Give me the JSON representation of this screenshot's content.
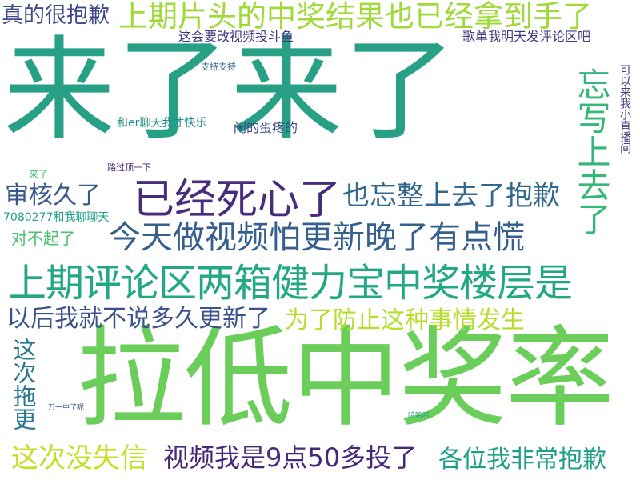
{
  "words": [
    {
      "text": "来了来了",
      "color": "#27a086"
    },
    {
      "text": "拉低中奖率",
      "color": "#6cce5a"
    },
    {
      "text": "上期片头的中奖结果也已经拿到手了",
      "color": "#a0da39"
    },
    {
      "text": "上期评论区两箱健力宝中奖楼层是",
      "color": "#22a884"
    },
    {
      "text": "今天做视频怕更新晚了有点慌",
      "color": "#35608d"
    },
    {
      "text": "已经死心了",
      "color": "#472d7b"
    },
    {
      "text": "也忘整上去了抱歉",
      "color": "#31688e"
    },
    {
      "text": "忘写上去了",
      "color": "#35b779"
    },
    {
      "text": "以后我就不说多久更新了",
      "color": "#3b528b"
    },
    {
      "text": "为了防止这种事情发生",
      "color": "#b5de2b"
    },
    {
      "text": "视频我是9点50多投了",
      "color": "#482878"
    },
    {
      "text": "各位我非常抱歉",
      "color": "#1f9e89"
    },
    {
      "text": "这次没失信",
      "color": "#c2df23"
    },
    {
      "text": "审核久了",
      "color": "#38598c"
    },
    {
      "text": "真的很抱歉",
      "color": "#3e4989"
    },
    {
      "text": "这次拖更",
      "color": "#2a788e"
    },
    {
      "text": "对不起了",
      "color": "#4ac16d"
    },
    {
      "text": "这会要改视频投斗鱼",
      "color": "#443983"
    },
    {
      "text": "歌单我明天发评论区吧",
      "color": "#443983"
    },
    {
      "text": "支持支持",
      "color": "#31688e"
    },
    {
      "text": "和er聊天我才快乐",
      "color": "#21918c"
    },
    {
      "text": "闲的蛋疼的",
      "color": "#3e4989"
    },
    {
      "text": "路过顶一下",
      "color": "#482475"
    },
    {
      "text": "来了",
      "color": "#2ebd72"
    },
    {
      "text": "7080277和我聊聊天",
      "color": "#1f9e89"
    },
    {
      "text": "可以来我小直播间",
      "color": "#433e85"
    },
    {
      "text": "万一中了呢",
      "color": "#3b528b"
    },
    {
      "text": "哈哈哈",
      "color": "#1f9e89"
    }
  ]
}
